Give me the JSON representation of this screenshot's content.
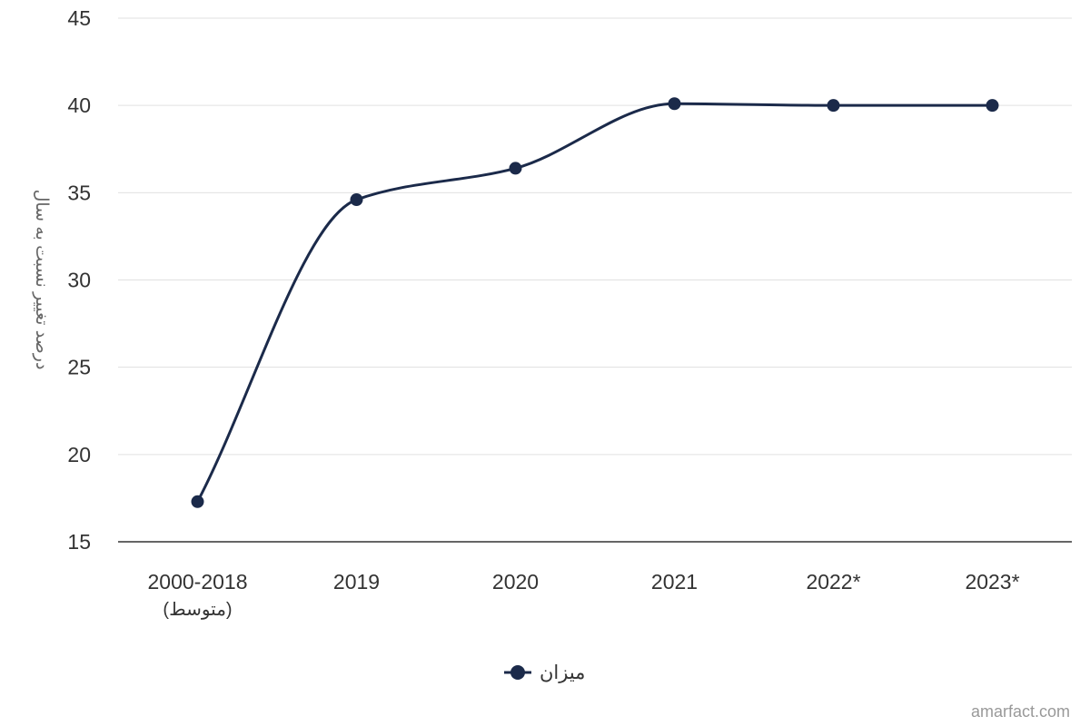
{
  "chart_data": {
    "type": "line",
    "ylabel": "درصد تغییر نسبت به سال",
    "xlabel": "",
    "ylim": [
      15,
      45
    ],
    "yticks": [
      15,
      20,
      25,
      30,
      35,
      40,
      45
    ],
    "grid": true,
    "smooth": true,
    "legend_position": "bottom",
    "categories": [
      {
        "label": "2000-2018",
        "sublabel": "(متوسط)"
      },
      {
        "label": "2019",
        "sublabel": ""
      },
      {
        "label": "2020",
        "sublabel": ""
      },
      {
        "label": "2021",
        "sublabel": ""
      },
      {
        "label": "2022*",
        "sublabel": ""
      },
      {
        "label": "2023*",
        "sublabel": ""
      }
    ],
    "series": [
      {
        "name": "میزان",
        "color": "#1b2a4a",
        "values": [
          17.3,
          34.6,
          36.4,
          40.1,
          40,
          40
        ]
      }
    ]
  },
  "credit": "amarfact.com"
}
